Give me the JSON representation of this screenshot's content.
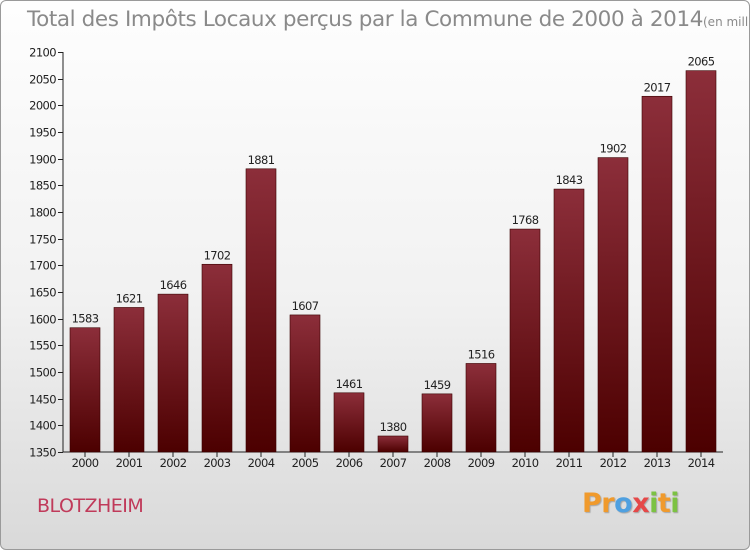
{
  "page": {
    "title": "Total des Impôts Locaux perçus par la Commune de 2000 à 2014",
    "title_unit": "(en milliers d'€)",
    "commune": "BLOTZHEIM",
    "logo": {
      "letters": [
        "P",
        "r",
        "o",
        "x",
        "i",
        "t",
        "i"
      ],
      "colors": [
        "#f09a2c",
        "#f09a2c",
        "#4fa0e0",
        "#e54848",
        "#7cc243",
        "#f09a2c",
        "#7cc243"
      ]
    }
  },
  "chart_data": {
    "type": "bar",
    "categories": [
      "2000",
      "2001",
      "2002",
      "2003",
      "2004",
      "2005",
      "2006",
      "2007",
      "2008",
      "2009",
      "2010",
      "2011",
      "2012",
      "2013",
      "2014"
    ],
    "values": [
      1583,
      1621,
      1646,
      1702,
      1881,
      1607,
      1461,
      1380,
      1459,
      1516,
      1768,
      1843,
      1902,
      2017,
      2065
    ],
    "ylim": [
      1350,
      2100
    ],
    "yticks": [
      1350,
      1400,
      1450,
      1500,
      1550,
      1600,
      1650,
      1700,
      1750,
      1800,
      1850,
      1900,
      1950,
      2000,
      2050,
      2100
    ],
    "grid": false,
    "bar_color_top": "#8c2e3a",
    "bar_color_bottom": "#4c0000"
  }
}
